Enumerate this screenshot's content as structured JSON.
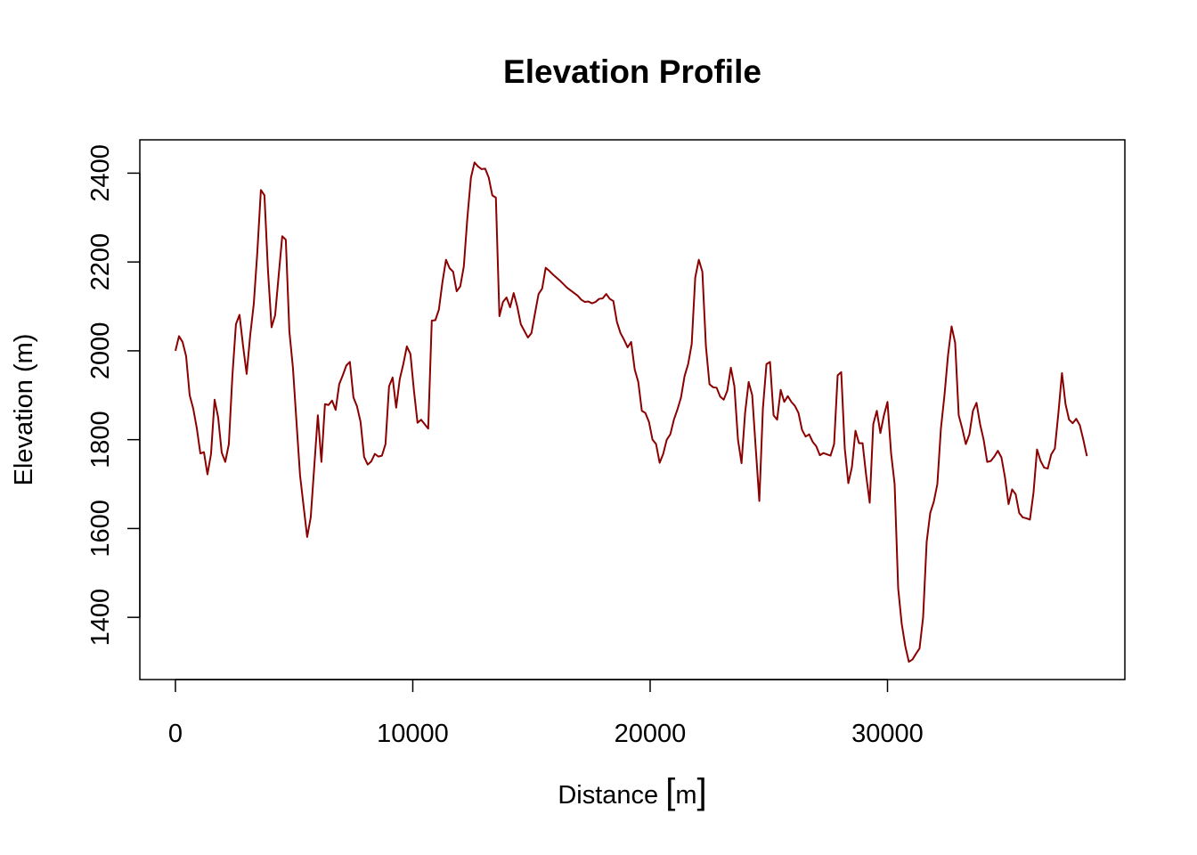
{
  "chart_data": {
    "type": "line",
    "title": "Elevation Profile",
    "xlabel": "Distance [m]",
    "ylabel": "Elevation (m)",
    "xlim": [
      -1500,
      40000
    ],
    "ylim": [
      1260,
      2475
    ],
    "x_ticks": [
      0,
      10000,
      20000,
      30000
    ],
    "x_tick_labels": [
      "0",
      "10000",
      "20000",
      "30000"
    ],
    "y_ticks": [
      1400,
      1600,
      1800,
      2000,
      2200,
      2400
    ],
    "y_tick_labels": [
      "1400",
      "1600",
      "1800",
      "2000",
      "2200",
      "2400"
    ],
    "grid": false,
    "line_color": "#8B0000",
    "x": [
      0,
      150,
      300,
      450,
      600,
      750,
      900,
      1050,
      1200,
      1350,
      1500,
      1650,
      1800,
      1950,
      2100,
      2250,
      2400,
      2550,
      2700,
      2850,
      3000,
      3150,
      3300,
      3450,
      3600,
      3750,
      3900,
      4050,
      4200,
      4350,
      4500,
      4650,
      4800,
      4950,
      5100,
      5250,
      5400,
      5550,
      5700,
      5850,
      6000,
      6150,
      6300,
      6450,
      6600,
      6750,
      6900,
      7050,
      7200,
      7350,
      7500,
      7650,
      7800,
      7950,
      8100,
      8250,
      8400,
      8550,
      8700,
      8850,
      9000,
      9150,
      9300,
      9450,
      9600,
      9750,
      9900,
      10050,
      10200,
      10350,
      10500,
      10650,
      10800,
      10950,
      11100,
      11250,
      11400,
      11550,
      11700,
      11850,
      12000,
      12150,
      12300,
      12450,
      12600,
      12750,
      12900,
      13050,
      13200,
      13350,
      13500,
      13650,
      13800,
      13950,
      14100,
      14250,
      14400,
      14550,
      14700,
      14850,
      15000,
      15150,
      15300,
      15450,
      15600,
      15750,
      15900,
      16050,
      16200,
      16350,
      16500,
      16650,
      16800,
      16950,
      17100,
      17250,
      17400,
      17550,
      17700,
      17850,
      18000,
      18150,
      18300,
      18450,
      18600,
      18750,
      18900,
      19050,
      19200,
      19350,
      19500,
      19650,
      19800,
      19950,
      20100,
      20250,
      20400,
      20550,
      20700,
      20850,
      21000,
      21150,
      21300,
      21450,
      21600,
      21750,
      21900,
      22050,
      22200,
      22350,
      22500,
      22650,
      22800,
      22950,
      23100,
      23250,
      23400,
      23550,
      23700,
      23850,
      24000,
      24150,
      24300,
      24450,
      24600,
      24750,
      24900,
      25050,
      25200,
      25350,
      25500,
      25650,
      25800,
      25950,
      26100,
      26250,
      26400,
      26550,
      26700,
      26850,
      27000,
      27150,
      27300,
      27450,
      27600,
      27750,
      27900,
      28050,
      28200,
      28350,
      28500,
      28650,
      28800,
      28950,
      29100,
      29250,
      29400,
      29550,
      29700,
      29850,
      30000,
      30150,
      30300,
      30450,
      30600,
      30750,
      30900,
      31050,
      31200,
      31350,
      31500,
      31650,
      31800,
      31950,
      32100,
      32250,
      32400,
      32550,
      32700,
      32850,
      33000,
      33150,
      33300,
      33450,
      33600,
      33750,
      33900,
      34050,
      34200,
      34350,
      34500,
      34650,
      34800,
      34950,
      35100,
      35250,
      35400,
      35550,
      35700,
      35850,
      36000,
      36150,
      36300,
      36450,
      36600,
      36750,
      36900,
      37050,
      37200,
      37350,
      37500,
      37650,
      37800,
      37950,
      38100,
      38250,
      38400
    ],
    "y": [
      2000,
      2033,
      2020,
      1988,
      1900,
      1870,
      1826,
      1769,
      1772,
      1722,
      1768,
      1890,
      1850,
      1771,
      1750,
      1790,
      1944,
      2060,
      2081,
      2011,
      1948,
      2035,
      2105,
      2222,
      2362,
      2350,
      2180,
      2053,
      2080,
      2170,
      2258,
      2250,
      2044,
      1962,
      1840,
      1720,
      1650,
      1581,
      1625,
      1740,
      1855,
      1750,
      1880,
      1878,
      1888,
      1867,
      1925,
      1945,
      1967,
      1975,
      1895,
      1875,
      1840,
      1761,
      1744,
      1751,
      1768,
      1762,
      1764,
      1790,
      1920,
      1940,
      1872,
      1936,
      1970,
      2010,
      1993,
      1910,
      1838,
      1845,
      1835,
      1825,
      2068,
      2069,
      2093,
      2155,
      2205,
      2186,
      2178,
      2134,
      2145,
      2190,
      2300,
      2390,
      2424,
      2415,
      2409,
      2410,
      2390,
      2350,
      2345,
      2078,
      2110,
      2120,
      2098,
      2130,
      2100,
      2060,
      2045,
      2030,
      2040,
      2085,
      2128,
      2140,
      2187,
      2180,
      2172,
      2165,
      2158,
      2150,
      2142,
      2136,
      2130,
      2124,
      2115,
      2110,
      2111,
      2107,
      2110,
      2117,
      2118,
      2128,
      2117,
      2112,
      2065,
      2040,
      2025,
      2008,
      2020,
      1958,
      1930,
      1865,
      1860,
      1840,
      1800,
      1790,
      1748,
      1768,
      1800,
      1812,
      1845,
      1868,
      1895,
      1943,
      1970,
      2015,
      2165,
      2205,
      2178,
      2010,
      1925,
      1918,
      1917,
      1897,
      1890,
      1910,
      1962,
      1920,
      1800,
      1747,
      1860,
      1930,
      1900,
      1780,
      1662,
      1870,
      1970,
      1975,
      1855,
      1845,
      1912,
      1885,
      1898,
      1885,
      1876,
      1860,
      1822,
      1807,
      1812,
      1795,
      1785,
      1765,
      1770,
      1767,
      1764,
      1790,
      1945,
      1952,
      1780,
      1702,
      1738,
      1820,
      1792,
      1792,
      1720,
      1658,
      1835,
      1865,
      1815,
      1855,
      1885,
      1770,
      1700,
      1465,
      1385,
      1335,
      1300,
      1305,
      1318,
      1330,
      1400,
      1570,
      1635,
      1660,
      1700,
      1825,
      1900,
      1990,
      2055,
      2018,
      1855,
      1825,
      1790,
      1812,
      1865,
      1883,
      1835,
      1800,
      1750,
      1752,
      1762,
      1775,
      1760,
      1715,
      1655,
      1688,
      1677,
      1635,
      1625,
      1623,
      1620,
      1680,
      1778,
      1752,
      1737,
      1735,
      1767,
      1780,
      1860,
      1950,
      1880,
      1845,
      1837,
      1847,
      1833,
      1800,
      1763
    ]
  }
}
